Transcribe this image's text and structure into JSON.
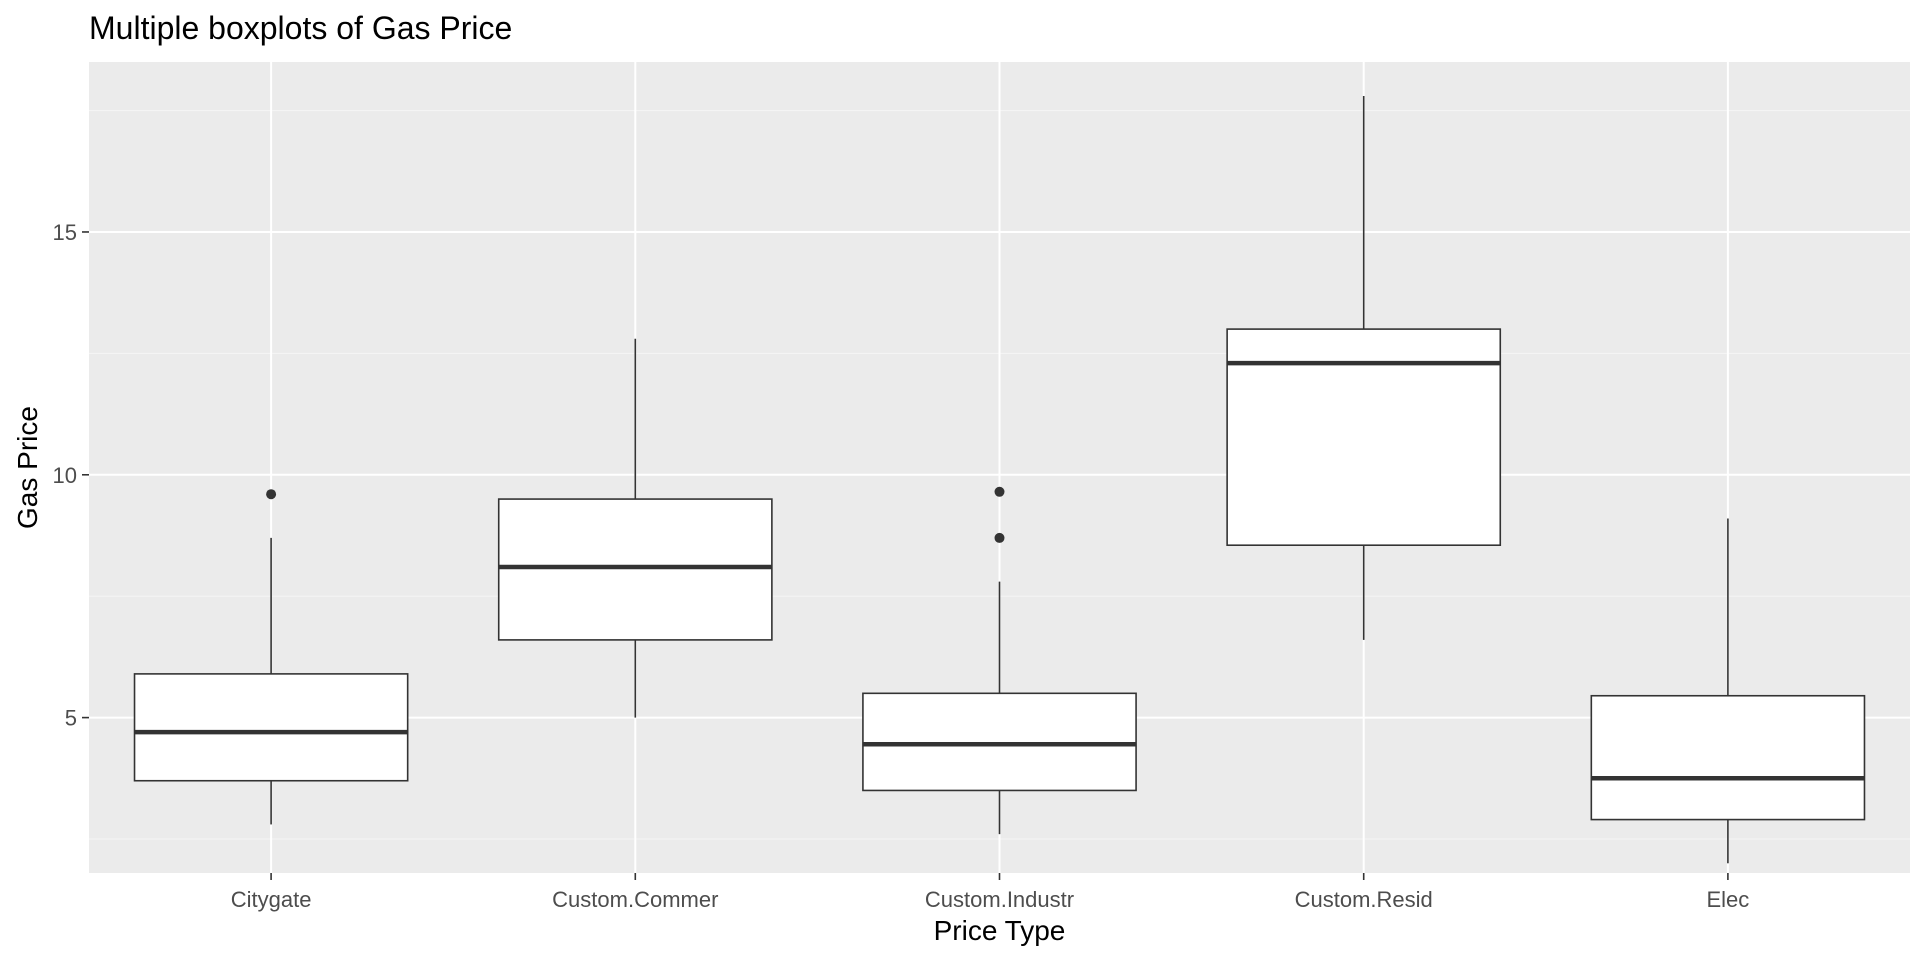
{
  "chart_data": {
    "type": "boxplot",
    "title": "Multiple boxplots of Gas Price",
    "xlabel": "Price Type",
    "ylabel": "Gas Price",
    "ylim": [
      1.8,
      18.5
    ],
    "yticks": [
      5,
      10,
      15
    ],
    "yticks_minor": [
      2.5,
      7.5,
      12.5,
      17.5
    ],
    "grid": true,
    "colors": {
      "panel_background": "#ebebeb",
      "grid_major": "#ffffff",
      "grid_minor": "#f5f5f5",
      "box_fill": "#ffffff",
      "box_stroke": "#333333",
      "tick_text": "#4d4d4d",
      "tick_mark": "#333333"
    },
    "categories": [
      "Citygate",
      "Custom.Commer",
      "Custom.Industr",
      "Custom.Resid",
      "Elec"
    ],
    "boxes": [
      {
        "category": "Citygate",
        "lower_whisker": 2.8,
        "q1": 3.7,
        "median": 4.7,
        "q3": 5.9,
        "upper_whisker": 8.7,
        "outliers": [
          9.6
        ]
      },
      {
        "category": "Custom.Commer",
        "lower_whisker": 5.0,
        "q1": 6.6,
        "median": 8.1,
        "q3": 9.5,
        "upper_whisker": 12.8,
        "outliers": []
      },
      {
        "category": "Custom.Industr",
        "lower_whisker": 2.6,
        "q1": 3.5,
        "median": 4.45,
        "q3": 5.5,
        "upper_whisker": 7.8,
        "outliers": [
          8.7,
          9.65
        ]
      },
      {
        "category": "Custom.Resid",
        "lower_whisker": 6.6,
        "q1": 8.55,
        "median": 12.3,
        "q3": 13.0,
        "upper_whisker": 17.8,
        "outliers": []
      },
      {
        "category": "Elec",
        "lower_whisker": 2.0,
        "q1": 2.9,
        "median": 3.75,
        "q3": 5.45,
        "upper_whisker": 9.1,
        "outliers": []
      }
    ]
  }
}
